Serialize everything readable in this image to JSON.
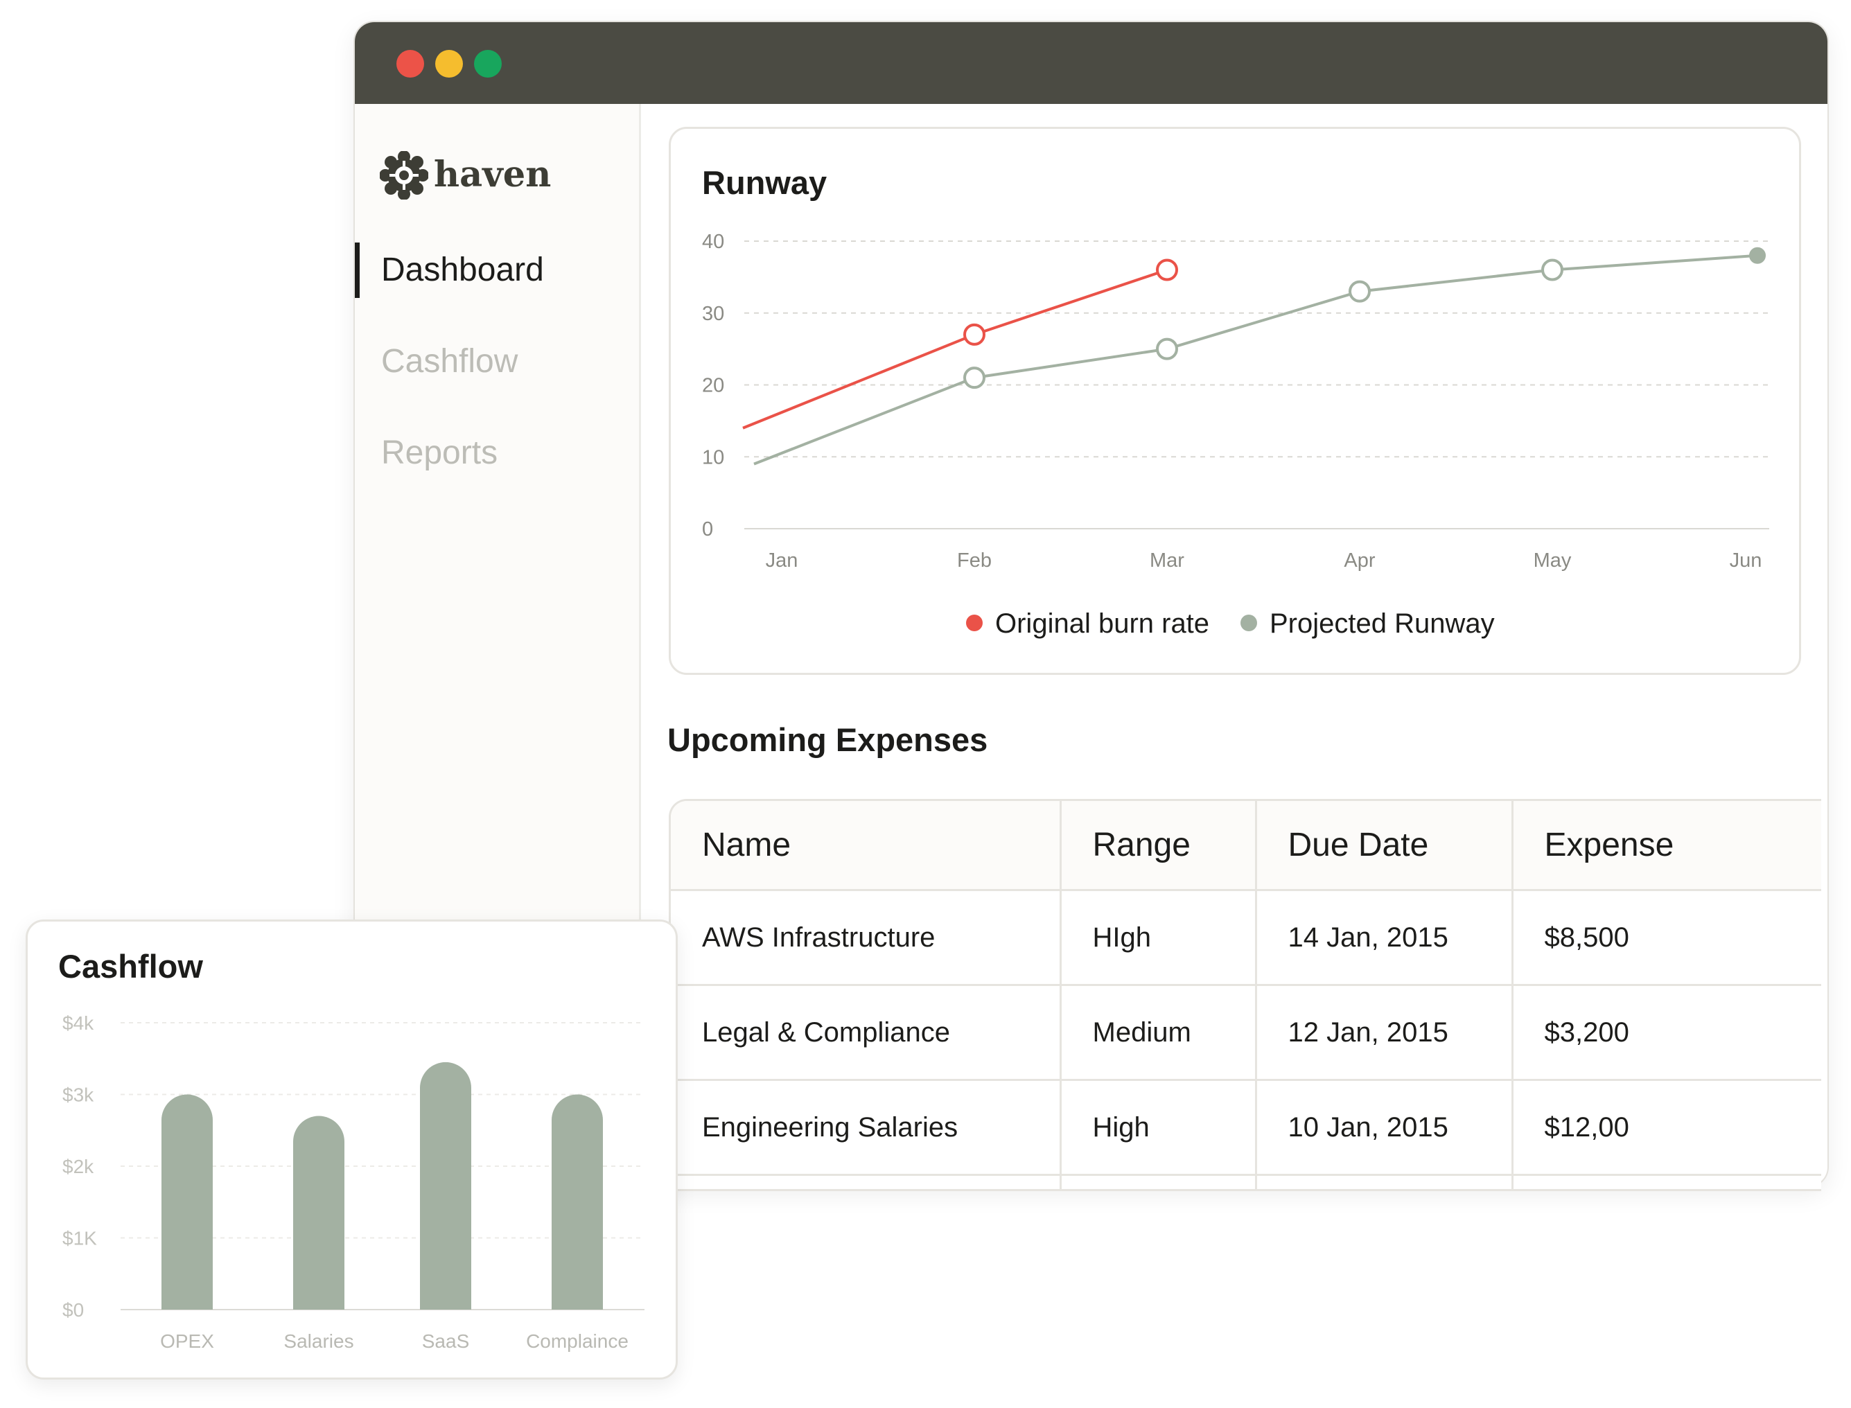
{
  "window": {
    "controls": [
      "close",
      "minimize",
      "maximize"
    ]
  },
  "colors": {
    "titlebar": "#4b4b43",
    "accent_red": "#ea5248",
    "series_gray": "#a3b1a2",
    "muted_text": "#bcbcb6",
    "border": "#e6e4df"
  },
  "brand": {
    "name": "haven",
    "icon": "haven-logo-icon"
  },
  "sidebar": {
    "items": [
      {
        "label": "Dashboard",
        "active": true
      },
      {
        "label": "Cashflow",
        "active": false
      },
      {
        "label": "Reports",
        "active": false
      }
    ]
  },
  "runway": {
    "title": "Runway",
    "chart_data": {
      "type": "line",
      "x": [
        "Jan",
        "Feb",
        "Mar",
        "Apr",
        "May",
        "Jun"
      ],
      "ylim": [
        0,
        40
      ],
      "yticks": [
        0,
        10,
        20,
        30,
        40
      ],
      "grid": true,
      "legend_placement": "bottom",
      "series": [
        {
          "name": "Original burn rate",
          "color": "#ea5248",
          "x": [
            "Jan",
            "Feb",
            "Mar"
          ],
          "values": [
            14,
            27,
            36
          ]
        },
        {
          "name": "Projected Runway",
          "color": "#a3b1a2",
          "x": [
            "Jan",
            "Feb",
            "Mar",
            "Apr",
            "May",
            "Jun"
          ],
          "values": [
            9,
            21,
            25,
            33,
            36,
            38
          ]
        }
      ]
    }
  },
  "expenses": {
    "title": "Upcoming Expenses",
    "columns": [
      "Name",
      "Range",
      "Due Date",
      "Expense"
    ],
    "rows": [
      [
        "AWS Infrastructure",
        "HIgh",
        "14 Jan, 2015",
        "$8,500"
      ],
      [
        "Legal & Compliance",
        "Medium",
        "12 Jan, 2015",
        "$3,200"
      ],
      [
        "Engineering Salaries",
        "High",
        "10 Jan, 2015",
        "$12,00"
      ]
    ]
  },
  "cashflow": {
    "title": "Cashflow",
    "chart_data": {
      "type": "bar",
      "categories": [
        "OPEX",
        "Salaries",
        "SaaS",
        "Complaince"
      ],
      "values": [
        3000,
        2700,
        3450,
        3000
      ],
      "ylim": [
        0,
        4000
      ],
      "yticks": [
        "$0",
        "$1K",
        "$2k",
        "$3k",
        "$4k"
      ],
      "color": "#a3b1a2",
      "grid": true
    }
  }
}
